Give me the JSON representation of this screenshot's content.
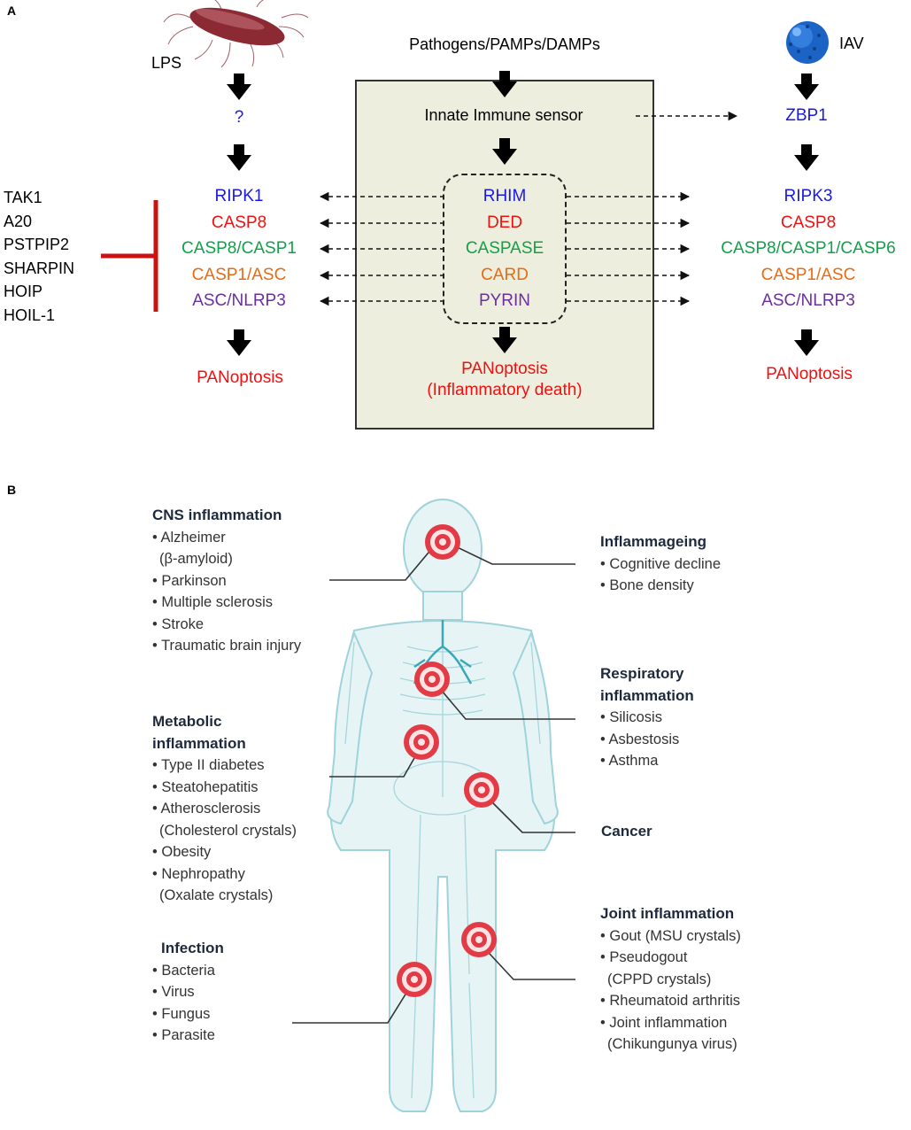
{
  "panel_a": {
    "label": "A",
    "top_center": "Pathogens/PAMPs/DAMPs",
    "left_trigger": "LPS",
    "left_sensor": "?",
    "right_trigger": "IAV",
    "right_sensor": "ZBP1",
    "box_sensor": "Innate Immune sensor",
    "left_column": [
      "RIPK1",
      "CASP8",
      "CASP8/CASP1",
      "CASP1/ASC",
      "ASC/NLRP3"
    ],
    "domains": [
      "RHIM",
      "DED",
      "CASPASE",
      "CARD",
      "PYRIN"
    ],
    "right_column": [
      "RIPK3",
      "CASP8",
      "CASP8/CASP1/CASP6",
      "CASP1/ASC",
      "ASC/NLRP3"
    ],
    "left_outcome": "PANoptosis",
    "center_outcome_1": "PANoptosis",
    "center_outcome_2": "(Inflammatory death)",
    "right_outcome": "PANoptosis",
    "inhibitors": [
      "TAK1",
      "A20",
      "PSTPIP2",
      "SHARPIN",
      "HOIP",
      "HOIL-1"
    ],
    "colors": {
      "blue": "#1a1adf",
      "red": "#ee1111",
      "green": "#12a04a",
      "orange": "#ea6a12",
      "purple": "#6b2fa0",
      "inhibitor_bar": "#cc1111",
      "box_fill": "#edeedd"
    },
    "icons": [
      "bacterium-icon",
      "virus-icon"
    ]
  },
  "panel_b": {
    "label": "B",
    "cns": {
      "title": "CNS inflammation",
      "items": [
        "• Alzheimer",
        "(β-amyloid)",
        "• Parkinson",
        "• Multiple sclerosis",
        "• Stroke",
        "• Traumatic brain injury"
      ]
    },
    "metabolic": {
      "title_1": "Metabolic",
      "title_2": "inflammation",
      "items": [
        "• Type II diabetes",
        "• Steatohepatitis",
        "• Atherosclerosis",
        "(Cholesterol crystals)",
        "• Obesity",
        "• Nephropathy",
        "(Oxalate crystals)"
      ]
    },
    "infection": {
      "title": "Infection",
      "items": [
        "• Bacteria",
        "• Virus",
        "• Fungus",
        "• Parasite"
      ]
    },
    "inflammageing": {
      "title": "Inflammageing",
      "items": [
        "• Cognitive decline",
        "• Bone density"
      ]
    },
    "respiratory": {
      "title_1": "Respiratory",
      "title_2": "inflammation",
      "items": [
        "• Silicosis",
        "• Asbestosis",
        "• Asthma"
      ]
    },
    "cancer": {
      "title": "Cancer"
    },
    "joint": {
      "title": "Joint inflammation",
      "items": [
        "• Gout (MSU crystals)",
        "• Pseudogout",
        "(CPPD crystals)",
        "• Rheumatoid arthritis",
        "• Joint inflammation",
        "(Chikungunya virus)"
      ]
    },
    "icons": [
      "human-body-icon",
      "inflammation-target-icon"
    ]
  }
}
